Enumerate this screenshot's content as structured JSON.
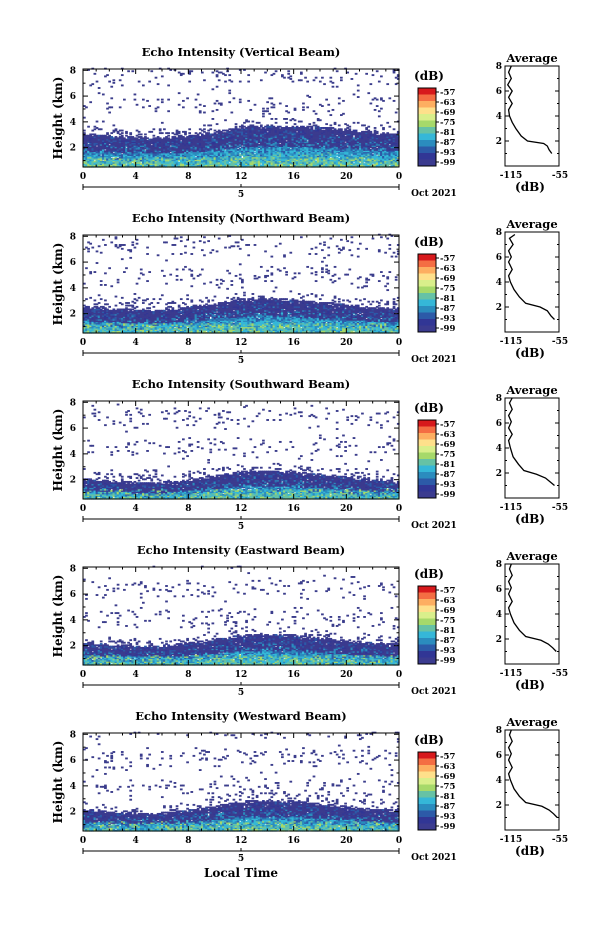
{
  "figure": {
    "x_axis_label": "Local Time",
    "date_label": "Oct 2021",
    "y_axis_label": "Height (km)",
    "colorbar_unit": "(dB)",
    "colorbar_ticks": [
      "-57",
      "-63",
      "-69",
      "-75",
      "-81",
      "-87",
      "-93",
      "-99"
    ],
    "colorbar_colors": [
      "#d7191c",
      "#f46d43",
      "#fdae61",
      "#fee08b",
      "#d9ef8b",
      "#a6d96a",
      "#66c2a5",
      "#35b7d8",
      "#2b8cbe",
      "#2c5aa8",
      "#313695",
      "#3b3b8f"
    ],
    "no_echo_color": "#ffffff",
    "weak_echo_color": "#3b3d8c",
    "average_title": "Average",
    "average_xlabel": "(dB)"
  },
  "chart_data": [
    {
      "type": "heatmap",
      "title": "Echo Intensity (Vertical Beam)",
      "x_ticks": [
        "0",
        "4",
        "8",
        "12",
        "16",
        "20",
        "0"
      ],
      "date_tick": "5",
      "y_ticks": [
        "2",
        "4",
        "6",
        "8"
      ],
      "xlim": [
        0,
        24
      ],
      "ylim": [
        0.5,
        8.1
      ],
      "top_layer_km": [
        3.1,
        2.9,
        2.8,
        2.8,
        2.9,
        3.2,
        3.6,
        3.7,
        3.7,
        3.6,
        3.4,
        3.2,
        3.1
      ],
      "avg_xlim": [
        -115,
        -55
      ],
      "avg_x_ticks": [
        "-115",
        "-55"
      ],
      "avg_ylim": [
        0,
        8
      ],
      "avg_y_ticks": [
        "2",
        "4",
        "6",
        "8"
      ],
      "avg_profile": [
        [
          -63,
          1.0
        ],
        [
          -66,
          1.3
        ],
        [
          -68,
          1.6
        ],
        [
          -72,
          1.8
        ],
        [
          -90,
          2.0
        ],
        [
          -97,
          2.4
        ],
        [
          -103,
          3.0
        ],
        [
          -107,
          3.5
        ],
        [
          -110,
          4.0
        ],
        [
          -111,
          4.5
        ],
        [
          -107,
          5.0
        ],
        [
          -111,
          5.5
        ],
        [
          -107,
          6.0
        ],
        [
          -112,
          6.5
        ],
        [
          -108,
          7.0
        ],
        [
          -111,
          7.5
        ],
        [
          -108,
          8.0
        ]
      ]
    },
    {
      "type": "heatmap",
      "title": "Echo Intensity (Northward Beam)",
      "x_ticks": [
        "0",
        "4",
        "8",
        "12",
        "16",
        "20",
        "0"
      ],
      "date_tick": "5",
      "y_ticks": [
        "2",
        "4",
        "6",
        "8"
      ],
      "xlim": [
        0,
        24
      ],
      "ylim": [
        0.5,
        8.1
      ],
      "top_layer_km": [
        2.6,
        2.4,
        2.3,
        2.3,
        2.5,
        2.8,
        3.1,
        3.2,
        3.1,
        2.9,
        2.7,
        2.5,
        2.4
      ],
      "avg_xlim": [
        -115,
        -55
      ],
      "avg_x_ticks": [
        "-115",
        "-55"
      ],
      "avg_ylim": [
        0,
        8
      ],
      "avg_y_ticks": [
        "2",
        "4",
        "6",
        "8"
      ],
      "avg_profile": [
        [
          -60,
          1.0
        ],
        [
          -64,
          1.3
        ],
        [
          -68,
          1.7
        ],
        [
          -76,
          2.0
        ],
        [
          -92,
          2.3
        ],
        [
          -99,
          2.8
        ],
        [
          -105,
          3.4
        ],
        [
          -109,
          4.0
        ],
        [
          -111,
          4.5
        ],
        [
          -107,
          5.0
        ],
        [
          -111,
          5.6
        ],
        [
          -108,
          6.0
        ],
        [
          -111,
          6.5
        ],
        [
          -106,
          7.0
        ],
        [
          -110,
          7.5
        ],
        [
          -104,
          7.8
        ]
      ]
    },
    {
      "type": "heatmap",
      "title": "Echo Intensity (Southward Beam)",
      "x_ticks": [
        "0",
        "4",
        "8",
        "12",
        "16",
        "20",
        "0"
      ],
      "date_tick": "5",
      "y_ticks": [
        "2",
        "4",
        "6",
        "8"
      ],
      "xlim": [
        0,
        24
      ],
      "ylim": [
        0.5,
        8.1
      ],
      "top_layer_km": [
        2.1,
        1.9,
        1.8,
        1.8,
        2.0,
        2.3,
        2.6,
        2.7,
        2.6,
        2.4,
        2.2,
        2.0,
        1.9
      ],
      "avg_xlim": [
        -115,
        -55
      ],
      "avg_x_ticks": [
        "-115",
        "-55"
      ],
      "avg_ylim": [
        0,
        8
      ],
      "avg_y_ticks": [
        "2",
        "4",
        "6",
        "8"
      ],
      "avg_profile": [
        [
          -60,
          1.0
        ],
        [
          -65,
          1.3
        ],
        [
          -70,
          1.6
        ],
        [
          -80,
          1.9
        ],
        [
          -94,
          2.2
        ],
        [
          -100,
          2.7
        ],
        [
          -106,
          3.3
        ],
        [
          -109,
          4.0
        ],
        [
          -111,
          4.6
        ],
        [
          -107,
          5.1
        ],
        [
          -111,
          5.6
        ],
        [
          -108,
          6.1
        ],
        [
          -111,
          6.6
        ],
        [
          -107,
          7.1
        ],
        [
          -110,
          7.6
        ],
        [
          -107,
          8.0
        ]
      ]
    },
    {
      "type": "heatmap",
      "title": "Echo Intensity (Eastward Beam)",
      "x_ticks": [
        "0",
        "4",
        "8",
        "12",
        "16",
        "20",
        "0"
      ],
      "date_tick": "5",
      "y_ticks": [
        "2",
        "4",
        "6",
        "8"
      ],
      "xlim": [
        0,
        24
      ],
      "ylim": [
        0.5,
        8.1
      ],
      "top_layer_km": [
        2.3,
        2.1,
        2.0,
        2.0,
        2.2,
        2.5,
        2.8,
        2.9,
        2.8,
        2.6,
        2.4,
        2.2,
        2.1
      ],
      "avg_xlim": [
        -115,
        -55
      ],
      "avg_x_ticks": [
        "-115",
        "-55"
      ],
      "avg_ylim": [
        0,
        8
      ],
      "avg_y_ticks": [
        "2",
        "4",
        "6",
        "8"
      ],
      "avg_profile": [
        [
          -58,
          1.0
        ],
        [
          -62,
          1.3
        ],
        [
          -67,
          1.6
        ],
        [
          -75,
          1.9
        ],
        [
          -92,
          2.2
        ],
        [
          -99,
          2.7
        ],
        [
          -105,
          3.3
        ],
        [
          -109,
          4.0
        ],
        [
          -111,
          4.5
        ],
        [
          -107,
          5.0
        ],
        [
          -111,
          5.6
        ],
        [
          -108,
          6.1
        ],
        [
          -111,
          6.6
        ],
        [
          -107,
          7.1
        ],
        [
          -110,
          7.6
        ],
        [
          -108,
          8.0
        ]
      ]
    },
    {
      "type": "heatmap",
      "title": "Echo Intensity (Westward Beam)",
      "x_ticks": [
        "0",
        "4",
        "8",
        "12",
        "16",
        "20",
        "0"
      ],
      "date_tick": "5",
      "y_ticks": [
        "2",
        "4",
        "6",
        "8"
      ],
      "xlim": [
        0,
        24
      ],
      "ylim": [
        0.5,
        8.1
      ],
      "top_layer_km": [
        2.2,
        2.0,
        1.9,
        1.9,
        2.1,
        2.4,
        2.8,
        2.9,
        2.8,
        2.6,
        2.4,
        2.2,
        2.1
      ],
      "avg_xlim": [
        -115,
        -55
      ],
      "avg_x_ticks": [
        "-115",
        "-55"
      ],
      "avg_ylim": [
        0,
        8
      ],
      "avg_y_ticks": [
        "2",
        "4",
        "6",
        "8"
      ],
      "avg_profile": [
        [
          -57,
          1.0
        ],
        [
          -61,
          1.3
        ],
        [
          -66,
          1.6
        ],
        [
          -74,
          1.9
        ],
        [
          -92,
          2.2
        ],
        [
          -99,
          2.7
        ],
        [
          -105,
          3.3
        ],
        [
          -109,
          4.0
        ],
        [
          -111,
          4.5
        ],
        [
          -107,
          5.0
        ],
        [
          -111,
          5.6
        ],
        [
          -108,
          6.1
        ],
        [
          -111,
          6.6
        ],
        [
          -107,
          7.1
        ],
        [
          -110,
          7.6
        ],
        [
          -108,
          8.0
        ]
      ]
    }
  ]
}
